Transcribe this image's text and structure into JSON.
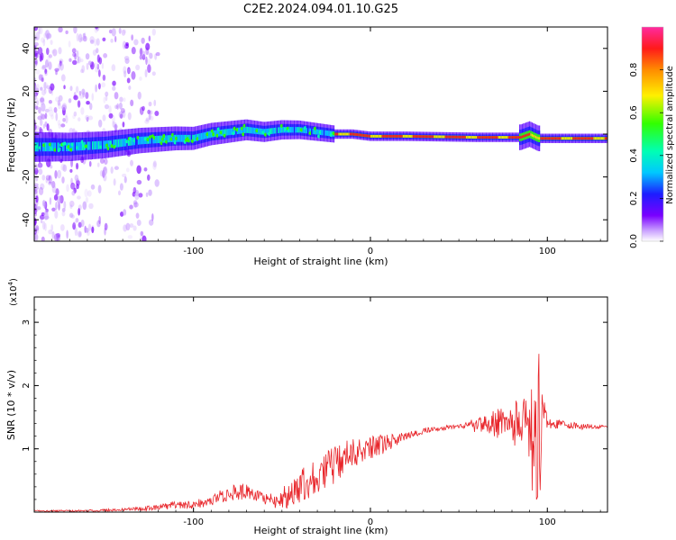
{
  "title": "C2E2.2024.094.01.10.G25",
  "chart_data": [
    {
      "type": "heatmap",
      "xlabel": "Height of straight line (km)",
      "ylabel": "Frequency (Hz)",
      "xlim": [
        -190,
        134
      ],
      "ylim": [
        -50,
        50
      ],
      "x_ticks": [
        -100,
        0,
        100
      ],
      "y_ticks": [
        -40,
        -20,
        0,
        20,
        40
      ],
      "colorbar": {
        "label": "Normalized spectral amplitude",
        "range": [
          0,
          1
        ],
        "ticks": [
          0.0,
          0.2,
          0.4,
          0.6,
          0.8
        ]
      },
      "ridge": [
        {
          "x": -190,
          "f": -6
        },
        {
          "x": -170,
          "f": -6
        },
        {
          "x": -150,
          "f": -5
        },
        {
          "x": -130,
          "f": -3
        },
        {
          "x": -110,
          "f": -2
        },
        {
          "x": -100,
          "f": -2
        },
        {
          "x": -90,
          "f": 0
        },
        {
          "x": -70,
          "f": 2
        },
        {
          "x": -60,
          "f": 1
        },
        {
          "x": -50,
          "f": 2
        },
        {
          "x": -40,
          "f": 2
        },
        {
          "x": -30,
          "f": 1
        },
        {
          "x": -20,
          "f": 0
        },
        {
          "x": -10,
          "f": 0
        },
        {
          "x": 0,
          "f": -1
        },
        {
          "x": 20,
          "f": -1
        },
        {
          "x": 60,
          "f": -1.5
        },
        {
          "x": 85,
          "f": -1.5
        },
        {
          "x": 90,
          "f": 0
        },
        {
          "x": 95,
          "f": -2
        },
        {
          "x": 134,
          "f": -2
        }
      ]
    },
    {
      "type": "line",
      "xlabel": "Height of straight line (km)",
      "ylabel": "SNR (10 * v/v)",
      "y_scale_label": "(x10",
      "y_scale_exp": "4",
      "y_scale_close": ")",
      "xlim": [
        -190,
        134
      ],
      "ylim": [
        0,
        3.4
      ],
      "x_ticks": [
        -100,
        0,
        100
      ],
      "y_ticks": [
        1,
        2,
        3
      ],
      "series": [
        {
          "color": "#e8262b",
          "points": [
            {
              "x": -190,
              "y": 0.02
            },
            {
              "x": -160,
              "y": 0.02
            },
            {
              "x": -140,
              "y": 0.04
            },
            {
              "x": -120,
              "y": 0.07
            },
            {
              "x": -110,
              "y": 0.12
            },
            {
              "x": -100,
              "y": 0.12
            },
            {
              "x": -90,
              "y": 0.18
            },
            {
              "x": -80,
              "y": 0.3
            },
            {
              "x": -70,
              "y": 0.32
            },
            {
              "x": -60,
              "y": 0.2
            },
            {
              "x": -50,
              "y": 0.2
            },
            {
              "x": -40,
              "y": 0.4
            },
            {
              "x": -30,
              "y": 0.6
            },
            {
              "x": -20,
              "y": 0.75
            },
            {
              "x": -10,
              "y": 0.9
            },
            {
              "x": 0,
              "y": 1.0
            },
            {
              "x": 10,
              "y": 1.1
            },
            {
              "x": 20,
              "y": 1.2
            },
            {
              "x": 30,
              "y": 1.28
            },
            {
              "x": 40,
              "y": 1.33
            },
            {
              "x": 50,
              "y": 1.35
            },
            {
              "x": 60,
              "y": 1.37
            },
            {
              "x": 70,
              "y": 1.4
            },
            {
              "x": 80,
              "y": 1.4
            },
            {
              "x": 90,
              "y": 1.4
            },
            {
              "x": 95,
              "y": 1.4
            },
            {
              "x": 100,
              "y": 1.4
            },
            {
              "x": 110,
              "y": 1.38
            },
            {
              "x": 120,
              "y": 1.35
            },
            {
              "x": 134,
              "y": 1.35
            }
          ],
          "noise": [
            {
              "x": -190,
              "a": 0.01
            },
            {
              "x": -140,
              "a": 0.02
            },
            {
              "x": -110,
              "a": 0.06
            },
            {
              "x": -90,
              "a": 0.08
            },
            {
              "x": -75,
              "a": 0.14
            },
            {
              "x": -60,
              "a": 0.08
            },
            {
              "x": -40,
              "a": 0.28
            },
            {
              "x": -20,
              "a": 0.32
            },
            {
              "x": 0,
              "a": 0.2
            },
            {
              "x": 20,
              "a": 0.06
            },
            {
              "x": 50,
              "a": 0.03
            },
            {
              "x": 65,
              "a": 0.18
            },
            {
              "x": 80,
              "a": 0.35
            },
            {
              "x": 88,
              "a": 0.45
            },
            {
              "x": 93,
              "a": 0.9
            },
            {
              "x": 97,
              "a": 0.7
            },
            {
              "x": 100,
              "a": 0.08
            },
            {
              "x": 134,
              "a": 0.02
            }
          ]
        }
      ]
    }
  ]
}
